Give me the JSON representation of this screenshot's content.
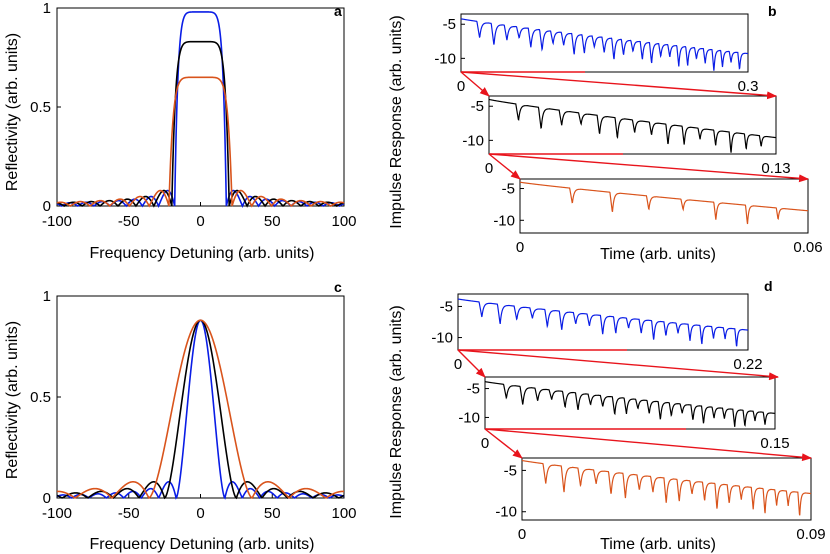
{
  "figure": {
    "panel_labels": [
      "a",
      "b",
      "c",
      "d"
    ],
    "colors": {
      "blue": "#0a1de6",
      "black": "#000000",
      "orange": "#d9541c",
      "arrow": "#e8141c"
    }
  },
  "chart_data": [
    {
      "panel": "a",
      "type": "line",
      "xlabel": "Frequency Detuning (arb. units)",
      "ylabel": "Reflectivity (arb. units)",
      "xlim": [
        -100,
        100
      ],
      "ylim": [
        0,
        1
      ],
      "xticks": [
        "-100",
        "-50",
        "0",
        "50",
        "100"
      ],
      "yticks": [
        "0",
        "0.5",
        "1"
      ],
      "series": [
        {
          "name": "blue",
          "color": "#0a1de6",
          "peak": 0.98,
          "half_width": 18
        },
        {
          "name": "black",
          "color": "#000000",
          "peak": 0.83,
          "half_width": 20
        },
        {
          "name": "orange",
          "color": "#d9541c",
          "peak": 0.65,
          "half_width": 22
        }
      ]
    },
    {
      "panel": "b",
      "type": "line",
      "ylabel": "Impulse Response (arb. units)",
      "xlabel": "Time (arb. units)",
      "subplots": [
        {
          "name": "blue",
          "color": "#0a1de6",
          "xlim": [
            0,
            0.3
          ],
          "ylim": [
            -12,
            -3.5
          ],
          "yticks": [
            "-5",
            "-10"
          ],
          "x_start_label": "0",
          "x_end_label": "0.3",
          "y_start": -4.2,
          "y_end": -9.3,
          "dips": 27
        },
        {
          "name": "black",
          "color": "#000000",
          "xlim": [
            0,
            0.13
          ],
          "ylim": [
            -12,
            -3.5
          ],
          "yticks": [
            "-5",
            "-10"
          ],
          "x_start_label": "0",
          "x_end_label": "0.13",
          "y_start": -4.0,
          "y_end": -9.6,
          "dips": 15
        },
        {
          "name": "orange",
          "color": "#d9541c",
          "xlim": [
            0,
            0.06
          ],
          "ylim": [
            -12,
            -3.5
          ],
          "yticks": [
            "-5",
            "-10"
          ],
          "x_start_label": "0",
          "x_end_label": "0.06",
          "y_start": -4.0,
          "y_end": -8.5,
          "dips": 7
        }
      ]
    },
    {
      "panel": "c",
      "type": "line",
      "xlabel": "Frequency Detuning (arb. units)",
      "ylabel": "Reflectivity (arb. units)",
      "xlim": [
        -100,
        100
      ],
      "ylim": [
        0,
        1
      ],
      "xticks": [
        "-100",
        "-50",
        "0",
        "50",
        "100"
      ],
      "yticks": [
        "0",
        "0.5",
        "1"
      ],
      "series": [
        {
          "name": "blue",
          "color": "#0a1de6",
          "peak": 0.88,
          "half_width": 17
        },
        {
          "name": "black",
          "color": "#000000",
          "peak": 0.88,
          "half_width": 25
        },
        {
          "name": "orange",
          "color": "#d9541c",
          "peak": 0.88,
          "half_width": 36
        }
      ]
    },
    {
      "panel": "d",
      "type": "line",
      "ylabel": "Impulse Response (arb. units)",
      "xlabel": "Time (arb. units)",
      "subplots": [
        {
          "name": "blue",
          "color": "#0a1de6",
          "xlim": [
            0,
            0.22
          ],
          "ylim": [
            -12,
            -3
          ],
          "yticks": [
            "-5",
            "-10"
          ],
          "x_start_label": "0",
          "x_end_label": "0.22",
          "y_start": -3.8,
          "y_end": -8.8,
          "dips": 20
        },
        {
          "name": "black",
          "color": "#000000",
          "xlim": [
            0,
            0.15
          ],
          "ylim": [
            -12,
            -3
          ],
          "yticks": [
            "-5",
            "-10"
          ],
          "x_start_label": "0",
          "x_end_label": "0.15",
          "y_start": -3.8,
          "y_end": -9.3,
          "dips": 23
        },
        {
          "name": "orange",
          "color": "#d9541c",
          "xlim": [
            0,
            0.09
          ],
          "ylim": [
            -11,
            -3.5
          ],
          "yticks": [
            "-5",
            "-10"
          ],
          "x_start_label": "0",
          "x_end_label": "0.09",
          "y_start": -3.8,
          "y_end": -7.8,
          "dips": 20
        }
      ]
    }
  ]
}
